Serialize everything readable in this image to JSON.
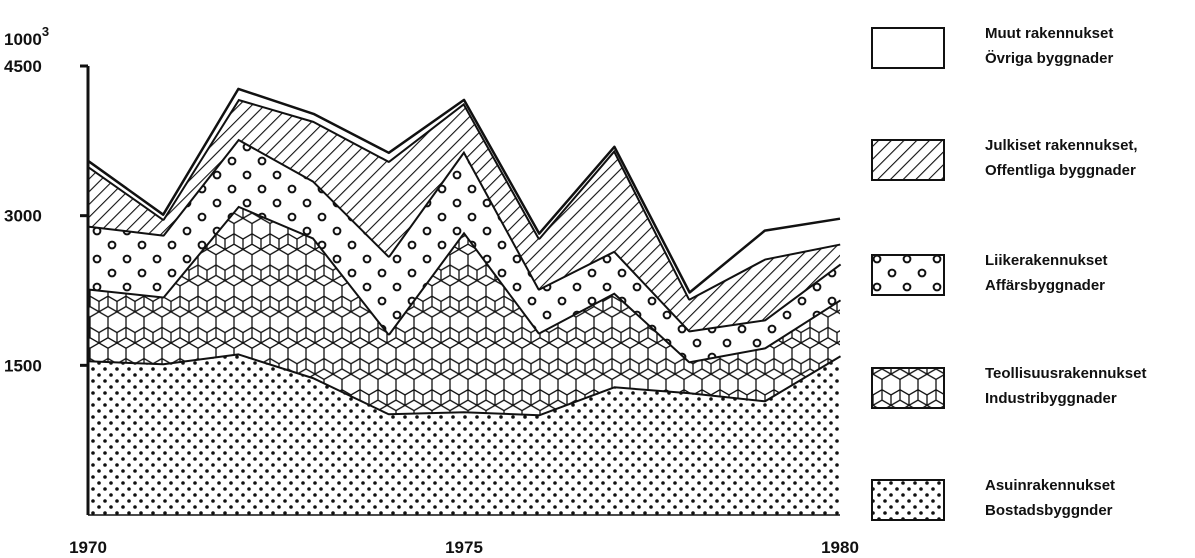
{
  "chart_data": {
    "type": "area",
    "stacked": true,
    "x": [
      1970,
      1971,
      1972,
      1973,
      1974,
      1975,
      1976,
      1977,
      1978,
      1979,
      1980
    ],
    "ylim": [
      0,
      4500
    ],
    "xlim": [
      1970,
      1980
    ],
    "y_unit_label": {
      "base": "1000",
      "exp": "3"
    },
    "y_ticks": [
      1500,
      3000,
      4500
    ],
    "x_ticks": [
      1970,
      1975,
      1980
    ],
    "grid": false,
    "legend_position": "right",
    "series": [
      {
        "key": "asuin",
        "legend": [
          "Asuinrakennukset",
          "Bostadsbyggnder"
        ],
        "pattern": "dots",
        "values": [
          1550,
          1520,
          1620,
          1380,
          1020,
          1040,
          1010,
          1290,
          1230,
          1150,
          1600
        ]
      },
      {
        "key": "teollisuus",
        "legend": [
          "Teollisuusrakennukset",
          "Industribyggnader"
        ],
        "pattern": "hexagons",
        "values": [
          720,
          670,
          1480,
          1400,
          800,
          1800,
          820,
          940,
          310,
          530,
          560
        ]
      },
      {
        "key": "liike",
        "legend": [
          "Liikerakennukset",
          "Affärsbyggnader"
        ],
        "pattern": "circles",
        "values": [
          630,
          620,
          670,
          570,
          780,
          810,
          440,
          420,
          310,
          280,
          360
        ]
      },
      {
        "key": "julkiset",
        "legend": [
          "Julkiset rakennukset,",
          "Offentliga byggnader"
        ],
        "pattern": "hatch",
        "values": [
          600,
          160,
          400,
          600,
          950,
          480,
          510,
          1010,
          320,
          610,
          200
        ]
      },
      {
        "key": "muut",
        "legend": [
          "Muut rakennukset",
          "Övriga byggnader"
        ],
        "pattern": "empty",
        "values": [
          50,
          40,
          100,
          70,
          80,
          30,
          40,
          30,
          60,
          280,
          250
        ]
      }
    ]
  }
}
